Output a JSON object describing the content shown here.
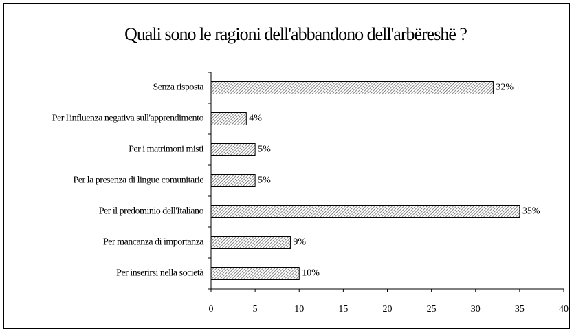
{
  "chart_data": {
    "type": "barh",
    "title": "Quali sono le ragioni dell'abbandono dell'arbëreshë ?",
    "categories": [
      "Senza risposta",
      "Per l'influenza negativa sull'apprendimento",
      "Per i matrimoni misti",
      "Per la presenza di lingue comunitarie",
      "Per il predominio dell'Italiano",
      "Per mancanza di importanza",
      "Per inserirsi nella società"
    ],
    "values": [
      32,
      4,
      5,
      5,
      35,
      9,
      10
    ],
    "value_labels": [
      "32%",
      "4%",
      "5%",
      "5%",
      "35%",
      "9%",
      "10%"
    ],
    "color": "#c8c8c8",
    "xlim": [
      0,
      40
    ],
    "xticks": [
      0,
      5,
      10,
      15,
      20,
      25,
      30,
      35,
      40
    ]
  }
}
